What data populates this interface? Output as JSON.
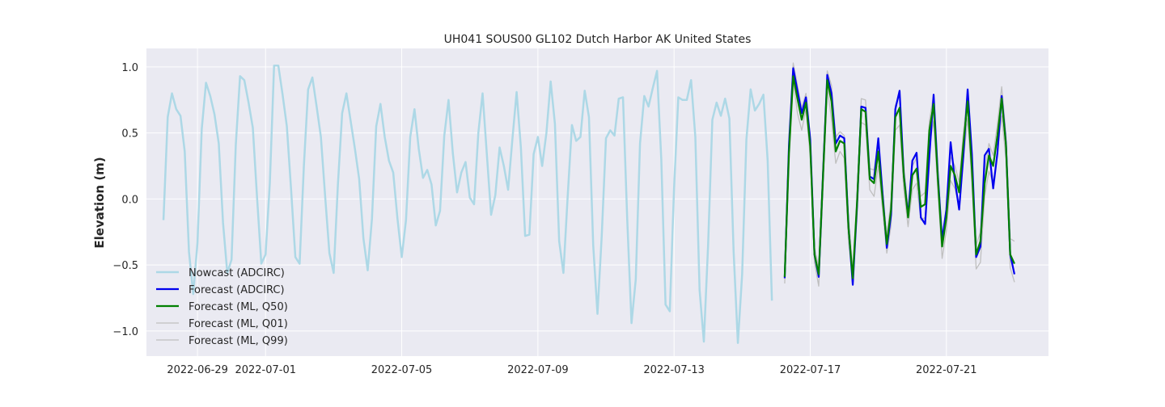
{
  "chart_data": {
    "type": "line",
    "title": "UH041 SOUS00 GL102 Dutch Harbor AK United States",
    "xlabel": "",
    "ylabel": "Elevation (m)",
    "xlim": [
      "2022-06-27T12:00",
      "2022-07-24T00:00"
    ],
    "ylim": [
      -1.19,
      1.14
    ],
    "x_ticks": [
      "2022-06-29",
      "2022-07-01",
      "2022-07-05",
      "2022-07-09",
      "2022-07-13",
      "2022-07-17",
      "2022-07-21"
    ],
    "y_ticks": [
      1.0,
      0.5,
      0.0,
      -0.5,
      -1.0
    ],
    "y_tick_labels": [
      "1.0",
      "0.5",
      "0.0",
      "−0.5",
      "−1.0"
    ],
    "grid": true,
    "legend_position": "lower-left",
    "series": [
      {
        "name": "Nowcast (ADCIRC)",
        "color": "#add8e6",
        "t0": "2022-06-28T00:00",
        "step_hours": 3,
        "values": [
          -0.16,
          0.62,
          0.8,
          0.68,
          0.63,
          0.36,
          -0.4,
          -0.72,
          -0.33,
          0.53,
          0.88,
          0.78,
          0.64,
          0.42,
          -0.18,
          -0.56,
          -0.46,
          0.41,
          0.93,
          0.9,
          0.73,
          0.54,
          0.01,
          -0.49,
          -0.42,
          0.12,
          1.01,
          1.01,
          0.79,
          0.55,
          0.07,
          -0.44,
          -0.49,
          0.25,
          0.83,
          0.92,
          0.7,
          0.47,
          0.02,
          -0.41,
          -0.56,
          0.11,
          0.65,
          0.8,
          0.59,
          0.38,
          0.15,
          -0.3,
          -0.54,
          -0.15,
          0.55,
          0.72,
          0.47,
          0.29,
          0.2,
          -0.15,
          -0.44,
          -0.16,
          0.47,
          0.68,
          0.38,
          0.16,
          0.22,
          0.11,
          -0.2,
          -0.09,
          0.48,
          0.75,
          0.35,
          0.05,
          0.2,
          0.28,
          0.01,
          -0.04,
          0.5,
          0.8,
          0.34,
          -0.12,
          0.03,
          0.39,
          0.25,
          0.07,
          0.45,
          0.81,
          0.39,
          -0.28,
          -0.27,
          0.34,
          0.47,
          0.25,
          0.5,
          0.89,
          0.57,
          -0.32,
          -0.56,
          0.02,
          0.56,
          0.44,
          0.47,
          0.82,
          0.62,
          -0.35,
          -0.87,
          -0.28,
          0.46,
          0.52,
          0.48,
          0.76,
          0.77,
          -0.16,
          -0.94,
          -0.61,
          0.42,
          0.78,
          0.7,
          0.84,
          0.97,
          0.3,
          -0.8,
          -0.85,
          0.08,
          0.77,
          0.75,
          0.75,
          0.9,
          0.47,
          -0.69,
          -1.08,
          -0.35,
          0.6,
          0.73,
          0.63,
          0.76,
          0.61,
          -0.4,
          -1.09,
          -0.57,
          0.45,
          0.83,
          0.67,
          0.72,
          0.79,
          0.29,
          -0.77
        ]
      },
      {
        "name": "Forecast (ADCIRC)",
        "color": "#0000ee",
        "t0": "2022-07-16T06:00",
        "step_hours": 3,
        "values": [
          -0.6,
          0.4,
          0.99,
          0.82,
          0.65,
          0.77,
          0.45,
          -0.42,
          -0.59,
          0.18,
          0.94,
          0.8,
          0.42,
          0.48,
          0.46,
          -0.21,
          -0.65,
          -0.05,
          0.7,
          0.69,
          0.17,
          0.15,
          0.46,
          0.04,
          -0.37,
          -0.12,
          0.68,
          0.82,
          0.18,
          -0.13,
          0.29,
          0.35,
          -0.14,
          -0.19,
          0.32,
          0.79,
          0.18,
          -0.31,
          -0.08,
          0.43,
          0.14,
          -0.08,
          0.33,
          0.83,
          0.34,
          -0.44,
          -0.36,
          0.33,
          0.38,
          0.08,
          0.35,
          0.78,
          0.42,
          -0.42,
          -0.57
        ]
      },
      {
        "name": "Forecast (ML, Q50)",
        "color": "#008000",
        "t0": "2022-07-16T06:00",
        "step_hours": 3,
        "values": [
          -0.59,
          0.35,
          0.93,
          0.76,
          0.6,
          0.73,
          0.4,
          -0.42,
          -0.57,
          0.17,
          0.9,
          0.74,
          0.36,
          0.44,
          0.42,
          -0.22,
          -0.6,
          -0.03,
          0.68,
          0.66,
          0.15,
          0.12,
          0.36,
          0.0,
          -0.34,
          -0.08,
          0.62,
          0.69,
          0.17,
          -0.14,
          0.18,
          0.23,
          -0.06,
          -0.04,
          0.52,
          0.72,
          0.15,
          -0.36,
          -0.14,
          0.25,
          0.18,
          0.05,
          0.42,
          0.74,
          0.22,
          -0.42,
          -0.32,
          0.12,
          0.33,
          0.25,
          0.48,
          0.76,
          0.41,
          -0.42,
          -0.49
        ]
      },
      {
        "name": "Forecast (ML, Q01)",
        "color": "#bfbfbf",
        "t0": "2022-07-16T06:00",
        "step_hours": 3,
        "values": [
          -0.64,
          0.25,
          0.9,
          0.65,
          0.52,
          0.68,
          0.32,
          -0.48,
          -0.66,
          0.06,
          0.85,
          0.6,
          0.27,
          0.36,
          0.31,
          -0.32,
          -0.63,
          -0.14,
          0.58,
          0.56,
          0.07,
          0.02,
          0.25,
          -0.08,
          -0.41,
          -0.2,
          0.52,
          0.56,
          0.07,
          -0.21,
          0.07,
          0.12,
          -0.16,
          -0.14,
          0.4,
          0.59,
          0.06,
          -0.45,
          -0.24,
          0.14,
          0.08,
          -0.05,
          0.3,
          0.61,
          0.12,
          -0.53,
          -0.48,
          0.02,
          0.21,
          0.12,
          0.35,
          0.63,
          0.3,
          -0.52,
          -0.63
        ]
      },
      {
        "name": "Forecast (ML, Q99)",
        "color": "#bfbfbf",
        "t0": "2022-07-16T06:00",
        "step_hours": 3,
        "values": [
          -0.55,
          0.48,
          1.03,
          0.86,
          0.69,
          0.8,
          0.49,
          -0.37,
          -0.52,
          0.26,
          0.97,
          0.86,
          0.47,
          0.51,
          0.48,
          -0.14,
          -0.55,
          0.04,
          0.76,
          0.75,
          0.23,
          0.22,
          0.43,
          0.07,
          -0.28,
          -0.01,
          0.71,
          0.78,
          0.24,
          -0.07,
          0.25,
          0.31,
          0.02,
          0.05,
          0.59,
          0.79,
          0.23,
          -0.29,
          -0.07,
          0.32,
          0.25,
          0.13,
          0.5,
          0.82,
          0.3,
          -0.35,
          -0.25,
          0.2,
          0.42,
          0.33,
          0.57,
          0.85,
          0.49,
          -0.3,
          -0.32
        ]
      }
    ]
  }
}
